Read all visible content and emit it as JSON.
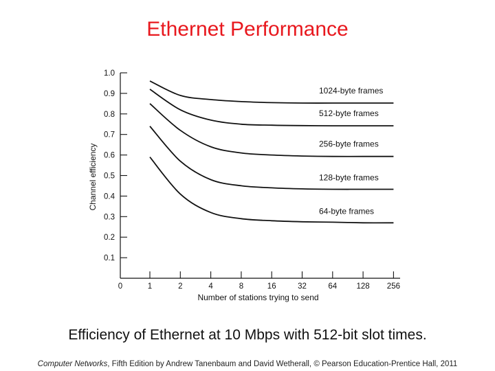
{
  "slide": {
    "title": "Ethernet Performance",
    "caption": "Efficiency of Ethernet at 10 Mbps with 512-bit slot times.",
    "credit_book": "Computer Networks",
    "credit_rest": ", Fifth Edition by Andrew Tanenbaum and David Wetherall, © Pearson Education-Prentice Hall, 2011"
  },
  "colors": {
    "title": "#e8181e",
    "ink": "#111111"
  },
  "chart_data": {
    "type": "line",
    "xlabel": "Number of stations trying to send",
    "ylabel": "Channel efficiency",
    "x_scale": "log2",
    "x_ticks": [
      "0",
      "1",
      "2",
      "4",
      "8",
      "16",
      "32",
      "64",
      "128",
      "256"
    ],
    "x": [
      1,
      2,
      4,
      8,
      16,
      32,
      64,
      128,
      256
    ],
    "y_ticks": [
      "0.1",
      "0.2",
      "0.3",
      "0.4",
      "0.5",
      "0.6",
      "0.7",
      "0.8",
      "0.9",
      "1.0"
    ],
    "ylim": [
      0,
      1.0
    ],
    "grid": false,
    "series": [
      {
        "name": "1024-byte frames",
        "values": [
          0.96,
          0.89,
          0.87,
          0.86,
          0.855,
          0.853,
          0.853,
          0.853,
          0.853
        ]
      },
      {
        "name": "512-byte frames",
        "values": [
          0.92,
          0.82,
          0.77,
          0.75,
          0.745,
          0.743,
          0.742,
          0.742,
          0.742
        ]
      },
      {
        "name": "256-byte frames",
        "values": [
          0.85,
          0.72,
          0.64,
          0.61,
          0.6,
          0.595,
          0.593,
          0.593,
          0.593
        ]
      },
      {
        "name": "128-byte frames",
        "values": [
          0.74,
          0.57,
          0.48,
          0.45,
          0.44,
          0.435,
          0.433,
          0.433,
          0.433
        ]
      },
      {
        "name": "64-byte frames",
        "values": [
          0.59,
          0.41,
          0.32,
          0.29,
          0.28,
          0.275,
          0.273,
          0.27,
          0.27
        ]
      }
    ]
  }
}
